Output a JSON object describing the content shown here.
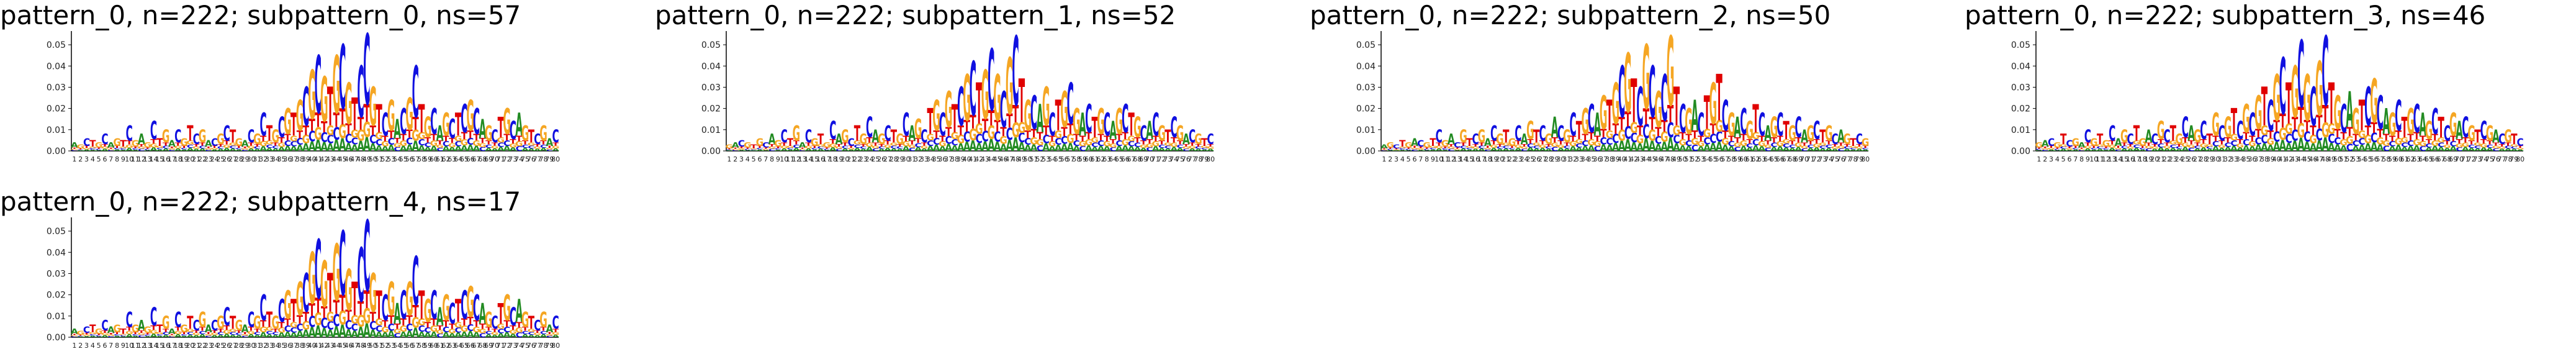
{
  "figure": {
    "panels": [
      {
        "title": "pattern_0, n=222; subpattern_0, ns=57"
      },
      {
        "title": "pattern_0, n=222; subpattern_1, ns=52"
      },
      {
        "title": "pattern_0, n=222; subpattern_2, ns=50"
      },
      {
        "title": "pattern_0, n=222; subpattern_3, ns=46"
      },
      {
        "title": "pattern_0, n=222; subpattern_4, ns=17"
      }
    ]
  },
  "chart_data": [
    {
      "type": "bar",
      "subtype": "sequence-logo",
      "title": "pattern_0, n=222; subpattern_0, ns=57",
      "ylim": [
        0,
        0.055
      ],
      "yticks": [
        "0.00",
        "0.01",
        "0.02",
        "0.03",
        "0.04",
        "0.05"
      ],
      "positions": 80,
      "letters": {
        "A": "#228B22",
        "C": "#1010e0",
        "G": "#f5a623",
        "T": "#e00000"
      },
      "heights": [
        0.004,
        0.003,
        0.006,
        0.005,
        0.004,
        0.008,
        0.004,
        0.006,
        0.005,
        0.012,
        0.005,
        0.008,
        0.004,
        0.014,
        0.006,
        0.01,
        0.005,
        0.01,
        0.006,
        0.012,
        0.008,
        0.01,
        0.005,
        0.006,
        0.008,
        0.012,
        0.01,
        0.006,
        0.005,
        0.01,
        0.008,
        0.018,
        0.012,
        0.01,
        0.016,
        0.02,
        0.018,
        0.024,
        0.03,
        0.038,
        0.045,
        0.035,
        0.03,
        0.045,
        0.05,
        0.032,
        0.025,
        0.04,
        0.055,
        0.03,
        0.022,
        0.018,
        0.024,
        0.015,
        0.02,
        0.025,
        0.04,
        0.022,
        0.016,
        0.02,
        0.012,
        0.018,
        0.015,
        0.018,
        0.022,
        0.024,
        0.02,
        0.015,
        0.012,
        0.01,
        0.016,
        0.02,
        0.014,
        0.018,
        0.012,
        0.01,
        0.008,
        0.012,
        0.006,
        0.01
      ],
      "dominant": [
        "A",
        "G",
        "C",
        "T",
        "G",
        "C",
        "A",
        "G",
        "T",
        "C",
        "G",
        "A",
        "G",
        "C",
        "T",
        "G",
        "A",
        "C",
        "G",
        "T",
        "C",
        "G",
        "A",
        "C",
        "G",
        "C",
        "T",
        "G",
        "A",
        "C",
        "G",
        "C",
        "T",
        "G",
        "C",
        "G",
        "T",
        "G",
        "C",
        "G",
        "C",
        "G",
        "T",
        "G",
        "C",
        "G",
        "T",
        "C",
        "C",
        "G",
        "T",
        "C",
        "G",
        "A",
        "C",
        "G",
        "C",
        "T",
        "G",
        "C",
        "A",
        "G",
        "C",
        "T",
        "C",
        "G",
        "C",
        "A",
        "G",
        "C",
        "T",
        "G",
        "C",
        "A",
        "G",
        "T",
        "C",
        "G",
        "A",
        "C"
      ]
    },
    {
      "type": "bar",
      "subtype": "sequence-logo",
      "title": "pattern_0, n=222; subpattern_1, ns=52",
      "ylim": [
        0,
        0.055
      ],
      "yticks": [
        "0.00",
        "0.01",
        "0.02",
        "0.03",
        "0.04",
        "0.05"
      ],
      "positions": 80,
      "letters": {
        "A": "#228B22",
        "C": "#1010e0",
        "G": "#f5a623",
        "T": "#e00000"
      },
      "heights": [
        0.003,
        0.004,
        0.005,
        0.004,
        0.003,
        0.006,
        0.004,
        0.008,
        0.005,
        0.01,
        0.006,
        0.012,
        0.004,
        0.01,
        0.006,
        0.008,
        0.004,
        0.014,
        0.008,
        0.01,
        0.006,
        0.012,
        0.008,
        0.016,
        0.01,
        0.008,
        0.012,
        0.01,
        0.008,
        0.018,
        0.012,
        0.015,
        0.01,
        0.02,
        0.024,
        0.018,
        0.028,
        0.022,
        0.03,
        0.036,
        0.042,
        0.032,
        0.038,
        0.048,
        0.036,
        0.028,
        0.044,
        0.054,
        0.034,
        0.024,
        0.026,
        0.022,
        0.03,
        0.018,
        0.024,
        0.028,
        0.032,
        0.02,
        0.018,
        0.022,
        0.016,
        0.02,
        0.018,
        0.014,
        0.02,
        0.022,
        0.018,
        0.016,
        0.012,
        0.014,
        0.018,
        0.012,
        0.01,
        0.016,
        0.012,
        0.008,
        0.01,
        0.008,
        0.006,
        0.008
      ],
      "dominant": [
        "G",
        "A",
        "C",
        "G",
        "T",
        "G",
        "C",
        "A",
        "G",
        "C",
        "T",
        "G",
        "A",
        "C",
        "G",
        "T",
        "G",
        "C",
        "A",
        "G",
        "C",
        "T",
        "G",
        "C",
        "A",
        "G",
        "C",
        "T",
        "G",
        "C",
        "A",
        "G",
        "C",
        "T",
        "G",
        "C",
        "G",
        "T",
        "C",
        "G",
        "C",
        "T",
        "G",
        "C",
        "G",
        "C",
        "G",
        "C",
        "T",
        "G",
        "C",
        "A",
        "G",
        "C",
        "T",
        "G",
        "C",
        "G",
        "A",
        "C",
        "T",
        "G",
        "C",
        "A",
        "G",
        "C",
        "T",
        "G",
        "C",
        "A",
        "C",
        "G",
        "T",
        "C",
        "G",
        "A",
        "C",
        "G",
        "T",
        "C"
      ]
    },
    {
      "type": "bar",
      "subtype": "sequence-logo",
      "title": "pattern_0, n=222; subpattern_2, ns=50",
      "ylim": [
        0,
        0.055
      ],
      "yticks": [
        "0.00",
        "0.01",
        "0.02",
        "0.03",
        "0.04",
        "0.05"
      ],
      "positions": 80,
      "letters": {
        "A": "#228B22",
        "C": "#1010e0",
        "G": "#f5a623",
        "T": "#e00000"
      },
      "heights": [
        0.003,
        0.004,
        0.003,
        0.005,
        0.004,
        0.006,
        0.005,
        0.004,
        0.006,
        0.01,
        0.005,
        0.008,
        0.004,
        0.01,
        0.006,
        0.008,
        0.01,
        0.006,
        0.012,
        0.008,
        0.01,
        0.006,
        0.012,
        0.008,
        0.014,
        0.01,
        0.012,
        0.008,
        0.016,
        0.012,
        0.01,
        0.018,
        0.014,
        0.02,
        0.022,
        0.018,
        0.026,
        0.024,
        0.032,
        0.04,
        0.046,
        0.034,
        0.03,
        0.05,
        0.04,
        0.028,
        0.036,
        0.054,
        0.03,
        0.022,
        0.02,
        0.024,
        0.018,
        0.026,
        0.032,
        0.036,
        0.024,
        0.018,
        0.016,
        0.02,
        0.014,
        0.022,
        0.018,
        0.012,
        0.016,
        0.018,
        0.014,
        0.012,
        0.016,
        0.01,
        0.012,
        0.014,
        0.01,
        0.012,
        0.008,
        0.01,
        0.008,
        0.006,
        0.008,
        0.006
      ],
      "dominant": [
        "A",
        "G",
        "C",
        "T",
        "G",
        "A",
        "C",
        "G",
        "T",
        "C",
        "G",
        "A",
        "C",
        "G",
        "T",
        "C",
        "G",
        "A",
        "C",
        "G",
        "T",
        "G",
        "C",
        "A",
        "G",
        "T",
        "C",
        "G",
        "A",
        "C",
        "G",
        "C",
        "T",
        "G",
        "C",
        "A",
        "G",
        "T",
        "G",
        "C",
        "G",
        "T",
        "C",
        "G",
        "C",
        "G",
        "C",
        "G",
        "T",
        "C",
        "G",
        "A",
        "C",
        "T",
        "G",
        "T",
        "C",
        "G",
        "A",
        "C",
        "G",
        "T",
        "C",
        "A",
        "G",
        "C",
        "T",
        "G",
        "C",
        "A",
        "G",
        "C",
        "T",
        "G",
        "C",
        "A",
        "G",
        "T",
        "C",
        "G"
      ]
    },
    {
      "type": "bar",
      "subtype": "sequence-logo",
      "title": "pattern_0, n=222; subpattern_3, ns=46",
      "ylim": [
        0,
        0.055
      ],
      "yticks": [
        "0.00",
        "0.01",
        "0.02",
        "0.03",
        "0.04",
        "0.05"
      ],
      "positions": 80,
      "letters": {
        "A": "#228B22",
        "C": "#1010e0",
        "G": "#f5a623",
        "T": "#e00000"
      },
      "heights": [
        0.004,
        0.005,
        0.006,
        0.004,
        0.008,
        0.005,
        0.006,
        0.004,
        0.01,
        0.006,
        0.008,
        0.005,
        0.012,
        0.006,
        0.01,
        0.008,
        0.012,
        0.006,
        0.01,
        0.008,
        0.014,
        0.01,
        0.012,
        0.008,
        0.016,
        0.012,
        0.01,
        0.014,
        0.008,
        0.018,
        0.012,
        0.016,
        0.02,
        0.014,
        0.022,
        0.018,
        0.026,
        0.03,
        0.024,
        0.036,
        0.044,
        0.032,
        0.04,
        0.052,
        0.036,
        0.03,
        0.042,
        0.054,
        0.032,
        0.026,
        0.022,
        0.028,
        0.02,
        0.024,
        0.03,
        0.034,
        0.026,
        0.02,
        0.018,
        0.024,
        0.016,
        0.02,
        0.022,
        0.018,
        0.014,
        0.02,
        0.016,
        0.012,
        0.018,
        0.014,
        0.016,
        0.012,
        0.01,
        0.014,
        0.012,
        0.01,
        0.008,
        0.01,
        0.008,
        0.006
      ],
      "dominant": [
        "G",
        "A",
        "C",
        "G",
        "T",
        "C",
        "G",
        "A",
        "C",
        "G",
        "T",
        "G",
        "C",
        "A",
        "G",
        "C",
        "T",
        "G",
        "A",
        "C",
        "G",
        "C",
        "T",
        "G",
        "C",
        "A",
        "G",
        "C",
        "T",
        "G",
        "C",
        "G",
        "T",
        "C",
        "G",
        "C",
        "G",
        "T",
        "C",
        "G",
        "C",
        "T",
        "G",
        "C",
        "G",
        "C",
        "G",
        "C",
        "T",
        "G",
        "C",
        "A",
        "G",
        "T",
        "C",
        "G",
        "C",
        "A",
        "G",
        "C",
        "T",
        "G",
        "C",
        "A",
        "G",
        "C",
        "T",
        "C",
        "G",
        "A",
        "C",
        "G",
        "T",
        "C",
        "G",
        "A",
        "C",
        "G",
        "T",
        "C"
      ]
    },
    {
      "type": "bar",
      "subtype": "sequence-logo",
      "title": "pattern_0, n=222; subpattern_4, ns=17",
      "ylim": [
        0,
        0.055
      ],
      "yticks": [
        "0.00",
        "0.01",
        "0.02",
        "0.03",
        "0.04",
        "0.05"
      ],
      "positions": 80,
      "letters": {
        "A": "#228B22",
        "C": "#1010e0",
        "G": "#f5a623",
        "T": "#e00000"
      },
      "heights": [
        0.004,
        0.003,
        0.005,
        0.006,
        0.004,
        0.008,
        0.005,
        0.006,
        0.004,
        0.012,
        0.006,
        0.008,
        0.005,
        0.014,
        0.006,
        0.01,
        0.004,
        0.012,
        0.006,
        0.01,
        0.008,
        0.012,
        0.006,
        0.008,
        0.01,
        0.014,
        0.01,
        0.008,
        0.006,
        0.012,
        0.01,
        0.02,
        0.012,
        0.01,
        0.018,
        0.022,
        0.018,
        0.026,
        0.03,
        0.04,
        0.046,
        0.036,
        0.03,
        0.044,
        0.05,
        0.032,
        0.026,
        0.042,
        0.055,
        0.03,
        0.022,
        0.02,
        0.026,
        0.016,
        0.022,
        0.026,
        0.038,
        0.022,
        0.018,
        0.022,
        0.014,
        0.02,
        0.016,
        0.018,
        0.022,
        0.024,
        0.02,
        0.016,
        0.012,
        0.01,
        0.016,
        0.02,
        0.014,
        0.018,
        0.012,
        0.01,
        0.008,
        0.012,
        0.006,
        0.01
      ],
      "dominant": [
        "A",
        "G",
        "C",
        "T",
        "G",
        "C",
        "A",
        "G",
        "T",
        "C",
        "G",
        "A",
        "G",
        "C",
        "T",
        "G",
        "A",
        "C",
        "G",
        "T",
        "C",
        "G",
        "A",
        "C",
        "G",
        "C",
        "T",
        "G",
        "A",
        "C",
        "G",
        "C",
        "T",
        "G",
        "C",
        "G",
        "T",
        "G",
        "C",
        "G",
        "C",
        "G",
        "T",
        "G",
        "C",
        "G",
        "T",
        "C",
        "C",
        "G",
        "T",
        "C",
        "G",
        "A",
        "C",
        "G",
        "C",
        "T",
        "G",
        "C",
        "A",
        "G",
        "C",
        "T",
        "C",
        "G",
        "C",
        "A",
        "G",
        "C",
        "T",
        "G",
        "C",
        "A",
        "G",
        "T",
        "C",
        "G",
        "A",
        "C"
      ]
    }
  ]
}
